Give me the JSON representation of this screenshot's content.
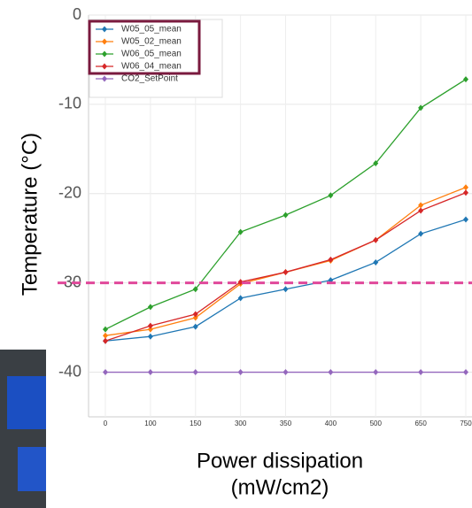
{
  "chart_data": {
    "type": "line",
    "ylabel": "Temperature (°C)",
    "xlabel": [
      "Power dissipation",
      "(mW/cm2)"
    ],
    "categories": [
      "0",
      "100",
      "150",
      "300",
      "350",
      "400",
      "500",
      "650",
      "750"
    ],
    "ylim": [
      -45,
      0
    ],
    "yticks": [
      0,
      -10,
      -20,
      -30,
      -40
    ],
    "grid": true,
    "legend": "upper left",
    "reference_line": {
      "value": -30,
      "color": "#e0489a"
    },
    "series": [
      {
        "name": "W05_05_mean",
        "color": "#1f77b4",
        "values": [
          -36.5,
          -36.0,
          -34.9,
          -31.7,
          -30.7,
          -29.7,
          -27.7,
          -24.5,
          -22.9
        ]
      },
      {
        "name": "W05_02_mean",
        "color": "#ff7f0e",
        "values": [
          -35.9,
          -35.2,
          -33.9,
          -30.1,
          -28.8,
          -27.5,
          -25.2,
          -21.3,
          -19.3
        ]
      },
      {
        "name": "W06_05_mean",
        "color": "#2ca02c",
        "values": [
          -35.2,
          -32.7,
          -30.7,
          -24.3,
          -22.4,
          -20.2,
          -16.6,
          -10.4,
          -7.2
        ]
      },
      {
        "name": "W06_04_mean",
        "color": "#d62728",
        "values": [
          -36.5,
          -34.8,
          -33.5,
          -29.9,
          -28.8,
          -27.4,
          -25.2,
          -21.9,
          -19.9
        ]
      },
      {
        "name": "CO2_SetPoint",
        "color": "#9467bd",
        "values": [
          -40,
          -40,
          -40,
          -40,
          -40,
          -40,
          -40,
          -40,
          -40
        ]
      }
    ]
  }
}
